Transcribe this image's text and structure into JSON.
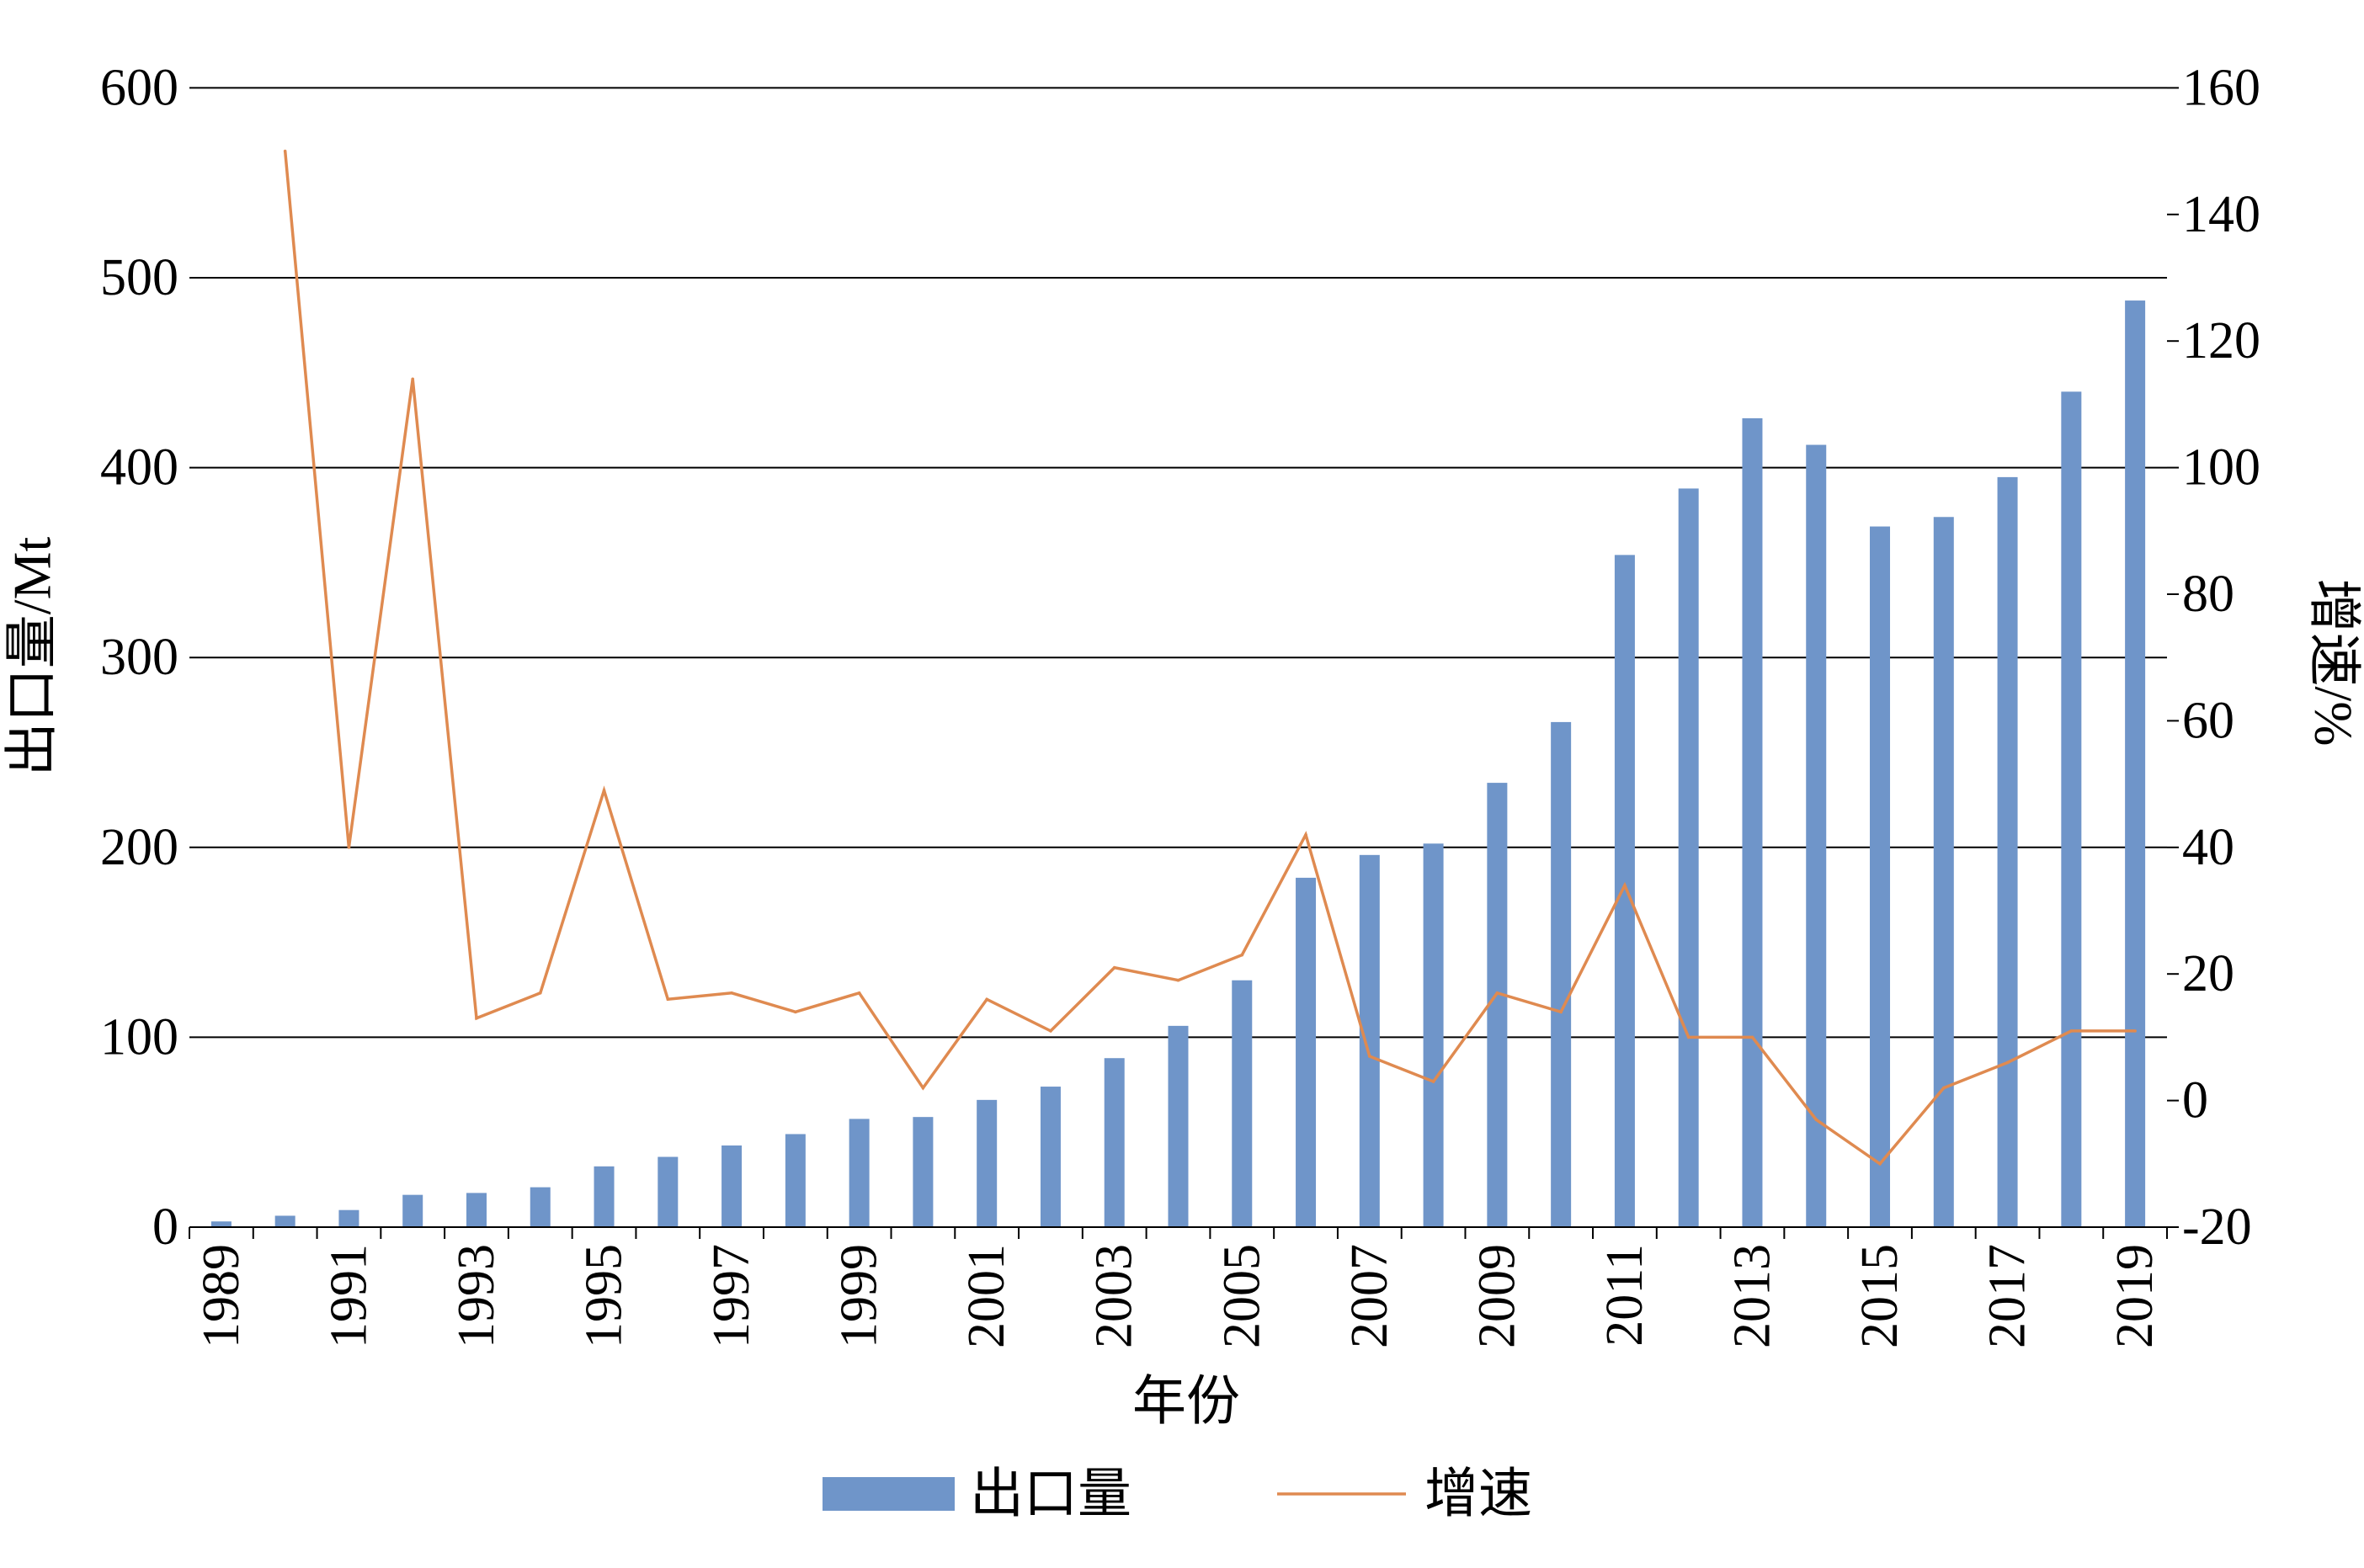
{
  "chart_data": {
    "type": "bar",
    "x": [
      1989,
      1990,
      1991,
      1992,
      1993,
      1994,
      1995,
      1996,
      1997,
      1998,
      1999,
      2000,
      2001,
      2002,
      2003,
      2004,
      2005,
      2006,
      2007,
      2008,
      2009,
      2010,
      2011,
      2012,
      2013,
      2014,
      2015,
      2016,
      2017,
      2018,
      2019
    ],
    "xtick_labels": [
      "1989",
      "1991",
      "1993",
      "1995",
      "1997",
      "1999",
      "2001",
      "2003",
      "2005",
      "2007",
      "2009",
      "2011",
      "2013",
      "2015",
      "2017",
      "2019"
    ],
    "xlabel": "年份",
    "ylabel": "出口量/Mt",
    "y2label": "增速/%",
    "ylim": [
      0,
      600
    ],
    "yticks": [
      0,
      100,
      200,
      300,
      400,
      500,
      600
    ],
    "y2lim": [
      -20,
      160
    ],
    "y2ticks": [
      -20,
      0,
      20,
      40,
      60,
      80,
      100,
      120,
      140,
      160
    ],
    "grid": true,
    "legend": "bottom",
    "series": [
      {
        "name": "出口量",
        "type": "bar",
        "axis": "left",
        "color": "#6f95c9",
        "values": [
          3,
          6,
          9,
          17,
          18,
          21,
          32,
          37,
          43,
          49,
          57,
          58,
          67,
          74,
          89,
          106,
          130,
          184,
          196,
          202,
          234,
          266,
          354,
          389,
          426,
          412,
          369,
          374,
          395,
          440,
          488
        ]
      },
      {
        "name": "增速",
        "type": "line",
        "axis": "right",
        "color": "#df8a50",
        "values": [
          null,
          150,
          40,
          114,
          13,
          17,
          49,
          16,
          17,
          14,
          17,
          2,
          16,
          11,
          21,
          19,
          23,
          42,
          7,
          3,
          17,
          14,
          34,
          10,
          10,
          -3,
          -10,
          2,
          6,
          11,
          11
        ]
      }
    ]
  }
}
